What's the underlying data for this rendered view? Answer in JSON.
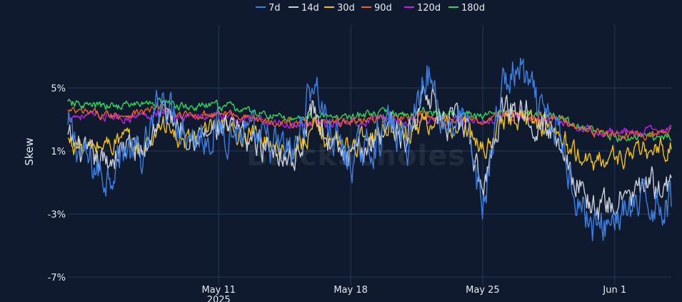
{
  "watermark": "BlockScholes",
  "chart_data": {
    "type": "line",
    "xlabel": "",
    "ylabel": "Skew",
    "xlim": [
      "2025-05-03",
      "2025-06-04"
    ],
    "ylim": [
      -7.5,
      9
    ],
    "x_ticks": [
      {
        "date": "2025-05-11",
        "label": "May 11",
        "sublabel": "2025"
      },
      {
        "date": "2025-05-18",
        "label": "May 18",
        "sublabel": ""
      },
      {
        "date": "2025-05-25",
        "label": "May 25",
        "sublabel": ""
      },
      {
        "date": "2025-06-01",
        "label": "Jun 1",
        "sublabel": ""
      }
    ],
    "y_ticks": [
      {
        "value": 5,
        "label": "5%"
      },
      {
        "value": 1,
        "label": "1%"
      },
      {
        "value": -3,
        "label": "-3%"
      },
      {
        "value": -7,
        "label": "-7%"
      }
    ],
    "grid": true,
    "legend_position": "top-center",
    "series": [
      {
        "name": "7d",
        "color": "#3d7fe0",
        "x": [
          "2025-05-03",
          "2025-05-04",
          "2025-05-05",
          "2025-05-06",
          "2025-05-07",
          "2025-05-08",
          "2025-05-09",
          "2025-05-10",
          "2025-05-11",
          "2025-05-12",
          "2025-05-13",
          "2025-05-14",
          "2025-05-15",
          "2025-05-16",
          "2025-05-17",
          "2025-05-18",
          "2025-05-19",
          "2025-05-20",
          "2025-05-21",
          "2025-05-22",
          "2025-05-23",
          "2025-05-24",
          "2025-05-25",
          "2025-05-26",
          "2025-05-27",
          "2025-05-28",
          "2025-05-29",
          "2025-05-30",
          "2025-05-31",
          "2025-06-01",
          "2025-06-02",
          "2025-06-03",
          "2025-06-04"
        ],
        "y": [
          2.4,
          0.3,
          -0.6,
          1.2,
          0.5,
          4.6,
          2.8,
          1.8,
          2.5,
          2.2,
          1.6,
          1.2,
          0.8,
          5.6,
          2.0,
          0.4,
          1.2,
          2.8,
          1.4,
          6.4,
          2.6,
          3.2,
          -2.6,
          5.0,
          6.2,
          3.4,
          2.1,
          -1.8,
          -4.2,
          -3.1,
          -2.8,
          -2.2,
          -2.4
        ]
      },
      {
        "name": "14d",
        "color": "#c9cfda",
        "x": [
          "2025-05-03",
          "2025-05-04",
          "2025-05-05",
          "2025-05-06",
          "2025-05-07",
          "2025-05-08",
          "2025-05-09",
          "2025-05-10",
          "2025-05-11",
          "2025-05-12",
          "2025-05-13",
          "2025-05-14",
          "2025-05-15",
          "2025-05-16",
          "2025-05-17",
          "2025-05-18",
          "2025-05-19",
          "2025-05-20",
          "2025-05-21",
          "2025-05-22",
          "2025-05-23",
          "2025-05-24",
          "2025-05-25",
          "2025-05-26",
          "2025-05-27",
          "2025-05-28",
          "2025-05-29",
          "2025-05-30",
          "2025-05-31",
          "2025-06-01",
          "2025-06-02",
          "2025-06-03",
          "2025-06-04"
        ],
        "y": [
          1.8,
          0.6,
          0.2,
          1.3,
          0.8,
          3.6,
          2.6,
          1.9,
          2.3,
          2.1,
          1.5,
          1.3,
          0.4,
          3.8,
          1.3,
          0.3,
          1.5,
          2.9,
          1.6,
          5.2,
          2.5,
          2.9,
          -1.6,
          3.8,
          3.9,
          2.8,
          1.9,
          -1.0,
          -2.8,
          -2.3,
          -1.7,
          -1.1,
          -1.4
        ]
      },
      {
        "name": "30d",
        "color": "#f2bf17",
        "x": [
          "2025-05-03",
          "2025-05-04",
          "2025-05-05",
          "2025-05-06",
          "2025-05-07",
          "2025-05-08",
          "2025-05-09",
          "2025-05-10",
          "2025-05-11",
          "2025-05-12",
          "2025-05-13",
          "2025-05-14",
          "2025-05-15",
          "2025-05-16",
          "2025-05-17",
          "2025-05-18",
          "2025-05-19",
          "2025-05-20",
          "2025-05-21",
          "2025-05-22",
          "2025-05-23",
          "2025-05-24",
          "2025-05-25",
          "2025-05-26",
          "2025-05-27",
          "2025-05-28",
          "2025-05-29",
          "2025-05-30",
          "2025-05-31",
          "2025-06-01",
          "2025-06-02",
          "2025-06-03",
          "2025-06-04"
        ],
        "y": [
          1.6,
          1.1,
          1.4,
          1.8,
          1.0,
          2.9,
          1.4,
          2.0,
          2.4,
          2.1,
          1.9,
          1.5,
          1.1,
          2.3,
          1.8,
          1.3,
          2.0,
          2.6,
          2.1,
          3.0,
          2.4,
          2.6,
          0.9,
          2.9,
          3.1,
          2.7,
          2.2,
          0.6,
          0.3,
          0.6,
          0.8,
          1.0,
          1.2
        ]
      },
      {
        "name": "90d",
        "color": "#e8632b",
        "x": [
          "2025-05-03",
          "2025-05-04",
          "2025-05-05",
          "2025-05-06",
          "2025-05-07",
          "2025-05-08",
          "2025-05-09",
          "2025-05-10",
          "2025-05-11",
          "2025-05-12",
          "2025-05-13",
          "2025-05-14",
          "2025-05-15",
          "2025-05-16",
          "2025-05-17",
          "2025-05-18",
          "2025-05-19",
          "2025-05-20",
          "2025-05-21",
          "2025-05-22",
          "2025-05-23",
          "2025-05-24",
          "2025-05-25",
          "2025-05-26",
          "2025-05-27",
          "2025-05-28",
          "2025-05-29",
          "2025-05-30",
          "2025-05-31",
          "2025-06-01",
          "2025-06-02",
          "2025-06-03",
          "2025-06-04"
        ],
        "y": [
          3.5,
          3.4,
          3.3,
          3.3,
          3.5,
          3.7,
          3.2,
          3.3,
          3.4,
          3.3,
          3.0,
          2.9,
          2.8,
          2.9,
          2.8,
          2.9,
          3.0,
          3.1,
          3.0,
          3.3,
          3.1,
          3.1,
          2.8,
          3.3,
          3.4,
          3.2,
          3.0,
          2.6,
          2.2,
          2.0,
          1.9,
          2.0,
          2.1
        ]
      },
      {
        "name": "120d",
        "color": "#c21fe0",
        "x": [
          "2025-05-03",
          "2025-05-04",
          "2025-05-05",
          "2025-05-06",
          "2025-05-07",
          "2025-05-08",
          "2025-05-09",
          "2025-05-10",
          "2025-05-11",
          "2025-05-12",
          "2025-05-13",
          "2025-05-14",
          "2025-05-15",
          "2025-05-16",
          "2025-05-17",
          "2025-05-18",
          "2025-05-19",
          "2025-05-20",
          "2025-05-21",
          "2025-05-22",
          "2025-05-23",
          "2025-05-24",
          "2025-05-25",
          "2025-05-26",
          "2025-05-27",
          "2025-05-28",
          "2025-05-29",
          "2025-05-30",
          "2025-05-31",
          "2025-06-01",
          "2025-06-02",
          "2025-06-03",
          "2025-06-04"
        ],
        "y": [
          3.3,
          3.2,
          3.2,
          3.1,
          3.3,
          3.5,
          3.1,
          3.2,
          3.2,
          3.1,
          2.9,
          2.8,
          2.7,
          2.8,
          2.7,
          2.8,
          2.9,
          3.0,
          2.9,
          3.1,
          2.9,
          3.0,
          2.8,
          3.1,
          3.2,
          3.0,
          2.9,
          2.6,
          2.3,
          2.2,
          2.2,
          2.3,
          2.4
        ]
      },
      {
        "name": "180d",
        "color": "#2fd65a",
        "x": [
          "2025-05-03",
          "2025-05-04",
          "2025-05-05",
          "2025-05-06",
          "2025-05-07",
          "2025-05-08",
          "2025-05-09",
          "2025-05-10",
          "2025-05-11",
          "2025-05-12",
          "2025-05-13",
          "2025-05-14",
          "2025-05-15",
          "2025-05-16",
          "2025-05-17",
          "2025-05-18",
          "2025-05-19",
          "2025-05-20",
          "2025-05-21",
          "2025-05-22",
          "2025-05-23",
          "2025-05-24",
          "2025-05-25",
          "2025-05-26",
          "2025-05-27",
          "2025-05-28",
          "2025-05-29",
          "2025-05-30",
          "2025-05-31",
          "2025-06-01",
          "2025-06-02",
          "2025-06-03",
          "2025-06-04"
        ],
        "y": [
          4.0,
          3.9,
          3.8,
          3.9,
          4.0,
          4.1,
          3.8,
          3.8,
          3.9,
          3.7,
          3.4,
          3.2,
          3.1,
          3.2,
          3.1,
          3.2,
          3.3,
          3.4,
          3.3,
          3.6,
          3.3,
          3.4,
          3.1,
          3.5,
          3.6,
          3.3,
          3.1,
          2.6,
          2.1,
          1.9,
          1.8,
          1.9,
          2.0
        ]
      }
    ]
  }
}
